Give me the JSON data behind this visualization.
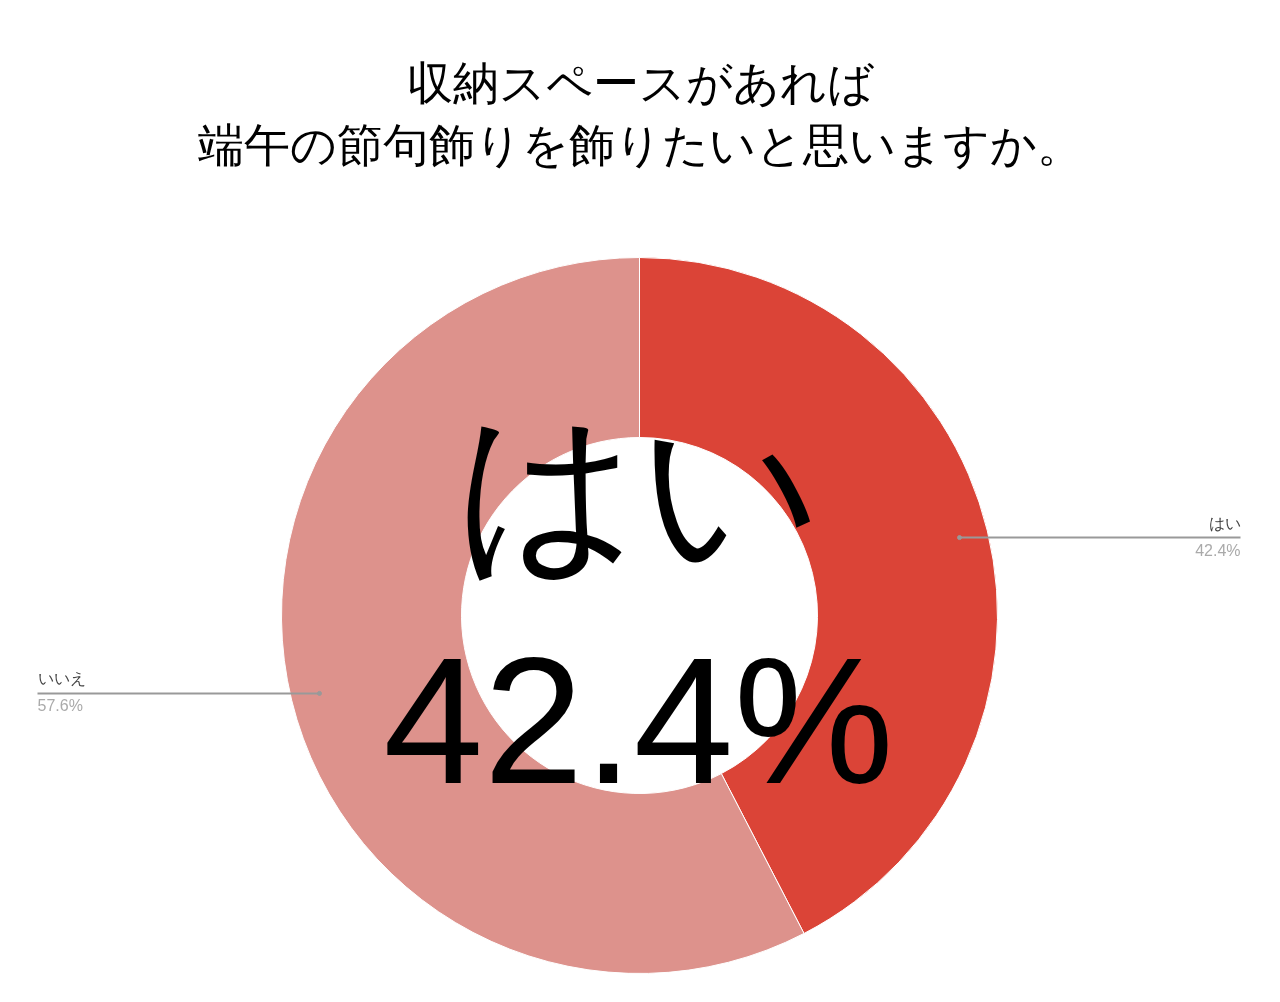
{
  "chart_data": {
    "type": "donut",
    "title": "収納スペースがあれば",
    "subtitle": "端午の節句飾りを飾りたいと思いますか。",
    "categories": [
      "はい",
      "いいえ"
    ],
    "values": [
      42.4,
      57.6
    ],
    "colors": [
      "#db4437",
      "#dd928c"
    ],
    "value_labels": [
      "42.4%",
      "57.6%"
    ],
    "annotations": [
      "はい",
      "42.4%"
    ]
  }
}
